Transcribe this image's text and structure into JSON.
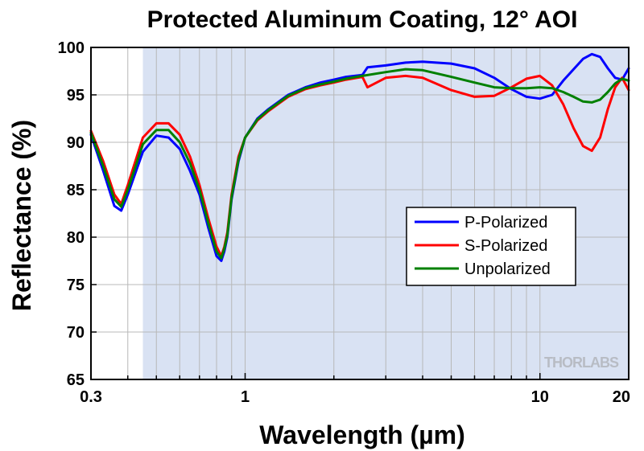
{
  "chart_data": {
    "type": "line",
    "title": "Protected Aluminum Coating, 12° AOI",
    "xlabel": "Wavelength (µm)",
    "ylabel": "Reflectance (%)",
    "xscale": "log",
    "xlim": [
      0.3,
      20
    ],
    "ylim": [
      65,
      100
    ],
    "x_ticks": [
      {
        "value": 0.3,
        "label": "0.3"
      },
      {
        "value": 1,
        "label": "1"
      },
      {
        "value": 10,
        "label": "10"
      },
      {
        "value": 20,
        "label": "20"
      }
    ],
    "y_ticks": [
      {
        "value": 65,
        "label": "65"
      },
      {
        "value": 70,
        "label": "70"
      },
      {
        "value": 75,
        "label": "75"
      },
      {
        "value": 80,
        "label": "80"
      },
      {
        "value": 85,
        "label": "85"
      },
      {
        "value": 90,
        "label": "90"
      },
      {
        "value": 95,
        "label": "95"
      },
      {
        "value": 100,
        "label": "100"
      }
    ],
    "grid": true,
    "shaded_region": [
      0.45,
      20
    ],
    "shaded_color": "#d9e2f3",
    "legend": "center-right",
    "series": [
      {
        "name": "P-Polarized",
        "color": "#0000ff",
        "x": [
          0.3,
          0.33,
          0.36,
          0.38,
          0.4,
          0.45,
          0.5,
          0.55,
          0.6,
          0.65,
          0.7,
          0.75,
          0.8,
          0.83,
          0.85,
          0.87,
          0.9,
          0.95,
          1.0,
          1.1,
          1.2,
          1.4,
          1.6,
          1.8,
          2.0,
          2.2,
          2.5,
          2.6,
          3.0,
          3.5,
          4.0,
          5.0,
          6.0,
          7.0,
          8.0,
          9.0,
          10.0,
          11.0,
          12.0,
          14.0,
          15.0,
          16.0,
          17.0,
          18.0,
          19.0,
          20.0
        ],
        "y": [
          90.8,
          87.0,
          83.3,
          82.8,
          84.5,
          89.0,
          90.7,
          90.5,
          89.3,
          87.0,
          84.5,
          81.0,
          78.0,
          77.5,
          78.5,
          80.0,
          84.0,
          88.0,
          90.5,
          92.5,
          93.5,
          95.0,
          95.8,
          96.3,
          96.6,
          96.9,
          97.1,
          97.9,
          98.1,
          98.4,
          98.5,
          98.3,
          97.8,
          96.8,
          95.6,
          94.8,
          94.6,
          95.0,
          96.5,
          98.8,
          99.3,
          99.0,
          97.8,
          96.8,
          96.6,
          97.8
        ]
      },
      {
        "name": "S-Polarized",
        "color": "#ff0000",
        "x": [
          0.3,
          0.33,
          0.36,
          0.38,
          0.4,
          0.45,
          0.5,
          0.55,
          0.6,
          0.65,
          0.7,
          0.75,
          0.8,
          0.83,
          0.85,
          0.87,
          0.9,
          0.95,
          1.0,
          1.1,
          1.2,
          1.4,
          1.6,
          1.8,
          2.0,
          2.2,
          2.5,
          2.6,
          3.0,
          3.5,
          4.0,
          5.0,
          6.0,
          7.0,
          8.0,
          9.0,
          10.0,
          11.0,
          12.0,
          13.0,
          14.0,
          15.0,
          16.0,
          17.0,
          18.0,
          19.0,
          20.0
        ],
        "y": [
          91.2,
          88.0,
          84.5,
          83.5,
          85.5,
          90.5,
          92.0,
          92.0,
          90.8,
          88.5,
          85.5,
          82.0,
          79.0,
          78.0,
          79.0,
          80.5,
          84.5,
          88.5,
          90.5,
          92.3,
          93.3,
          94.8,
          95.6,
          96.0,
          96.3,
          96.6,
          96.9,
          95.8,
          96.8,
          97.0,
          96.8,
          95.5,
          94.8,
          94.9,
          95.8,
          96.7,
          97.0,
          96.0,
          94.0,
          91.5,
          89.6,
          89.1,
          90.5,
          93.5,
          95.8,
          96.8,
          95.5
        ]
      },
      {
        "name": "Unpolarized",
        "color": "#008000",
        "x": [
          0.3,
          0.33,
          0.36,
          0.38,
          0.4,
          0.45,
          0.5,
          0.55,
          0.6,
          0.65,
          0.7,
          0.75,
          0.8,
          0.83,
          0.85,
          0.87,
          0.9,
          0.95,
          1.0,
          1.1,
          1.2,
          1.4,
          1.6,
          1.8,
          2.0,
          2.2,
          2.5,
          3.0,
          3.5,
          4.0,
          5.0,
          6.0,
          7.0,
          8.0,
          9.0,
          10.0,
          11.0,
          12.0,
          13.0,
          14.0,
          15.0,
          16.0,
          17.0,
          18.0,
          19.0,
          20.0
        ],
        "y": [
          91.0,
          87.5,
          84.0,
          83.2,
          85.0,
          89.8,
          91.3,
          91.3,
          90.0,
          87.8,
          85.0,
          81.5,
          78.5,
          77.8,
          78.8,
          80.2,
          84.2,
          88.2,
          90.5,
          92.4,
          93.4,
          94.9,
          95.7,
          96.1,
          96.4,
          96.7,
          97.0,
          97.4,
          97.7,
          97.6,
          96.9,
          96.3,
          95.8,
          95.7,
          95.7,
          95.8,
          95.7,
          95.3,
          94.8,
          94.3,
          94.2,
          94.5,
          95.3,
          96.2,
          96.7,
          96.5
        ]
      }
    ],
    "watermark": "THORLABS"
  }
}
